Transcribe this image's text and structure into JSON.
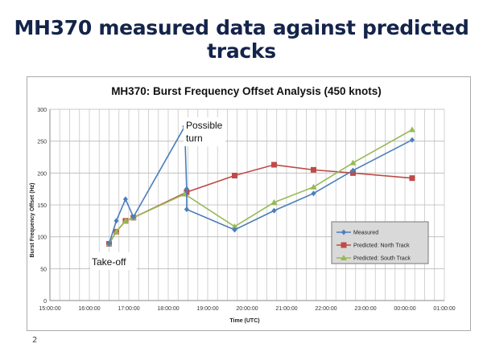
{
  "slide": {
    "title": "MH370 measured data against predicted tracks",
    "page_number": "2"
  },
  "chart_data": {
    "type": "line",
    "title": "MH370: Burst Frequency Offset Analysis (450 knots)",
    "xlabel": "Time (UTC)",
    "ylabel": "Burst Frequency Offset (Hz)",
    "xlim": [
      "15:00:00",
      "01:00:00"
    ],
    "ylim": [
      0,
      300
    ],
    "x_ticks": [
      "15:00:00",
      "16:00:00",
      "17:00:00",
      "18:00:00",
      "19:00:00",
      "20:00:00",
      "21:00:00",
      "22:00:00",
      "23:00:00",
      "00:00:00",
      "01:00:00"
    ],
    "y_ticks": [
      0,
      50,
      100,
      150,
      200,
      250,
      300
    ],
    "grid": true,
    "legend_position": "bottom-right",
    "annotations": [
      {
        "text": "Possible turn",
        "line1": "Possible",
        "line2": "turn"
      },
      {
        "text": "Take-off"
      }
    ],
    "series": [
      {
        "name": "Measured",
        "color": "#4a7ebb",
        "marker": "diamond",
        "x": [
          "16:30",
          "16:41",
          "16:55",
          "17:07",
          "18:25",
          "18:28",
          "18:28",
          "19:41",
          "20:41",
          "21:41",
          "22:41",
          "00:11"
        ],
        "y": [
          89,
          125,
          159,
          131,
          273,
          175,
          143,
          111,
          141,
          168,
          204,
          252
        ]
      },
      {
        "name": "Predicted: North Track",
        "color": "#be4b48",
        "marker": "square",
        "x": [
          "16:30",
          "16:41",
          "16:55",
          "17:07",
          "18:28",
          "19:41",
          "20:41",
          "21:41",
          "22:41",
          "00:11"
        ],
        "y": [
          89,
          108,
          125,
          130,
          170,
          196,
          213,
          205,
          200,
          192
        ]
      },
      {
        "name": "Predicted: South Track",
        "color": "#98b954",
        "marker": "triangle",
        "x": [
          "16:30",
          "16:41",
          "16:55",
          "17:07",
          "18:25",
          "19:41",
          "20:41",
          "21:41",
          "22:41",
          "00:11"
        ],
        "y": [
          89,
          108,
          125,
          130,
          167,
          116,
          154,
          178,
          216,
          268
        ]
      }
    ]
  }
}
